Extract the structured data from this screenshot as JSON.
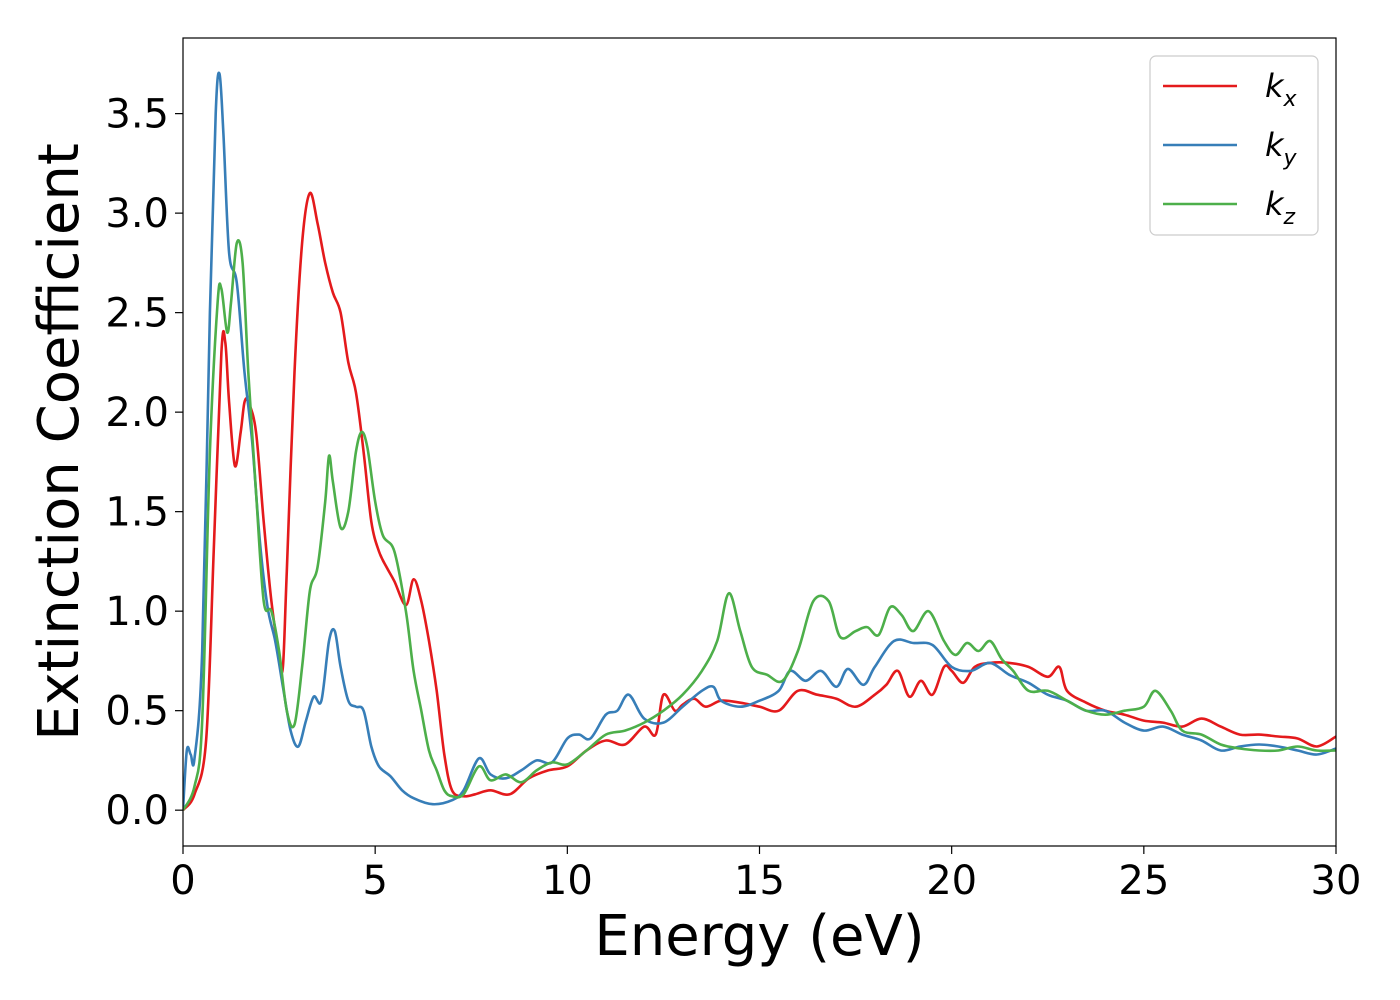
{
  "chart_data": {
    "type": "line",
    "title": "",
    "xlabel": "Energy (eV)",
    "ylabel": "Extinction Coefficient",
    "xlim": [
      0,
      30
    ],
    "ylim": [
      -0.18,
      3.88
    ],
    "xticks": [
      0,
      5,
      10,
      15,
      20,
      25,
      30
    ],
    "xtick_labels": [
      "0",
      "5",
      "10",
      "15",
      "20",
      "25",
      "30"
    ],
    "yticks": [
      0.0,
      0.5,
      1.0,
      1.5,
      2.0,
      2.5,
      3.0,
      3.5
    ],
    "ytick_labels": [
      "0.0",
      "0.5",
      "1.0",
      "1.5",
      "2.0",
      "2.5",
      "3.0",
      "3.5"
    ],
    "grid": false,
    "legend_position": "top-right",
    "series": [
      {
        "name": "k",
        "subscript": "x",
        "color": "#e41a1c",
        "points": [
          [
            0,
            0.0
          ],
          [
            0.3,
            0.08
          ],
          [
            0.6,
            0.35
          ],
          [
            0.8,
            1.3
          ],
          [
            1.0,
            2.3
          ],
          [
            1.1,
            2.35
          ],
          [
            1.2,
            2.05
          ],
          [
            1.35,
            1.73
          ],
          [
            1.5,
            1.9
          ],
          [
            1.6,
            2.05
          ],
          [
            1.7,
            2.05
          ],
          [
            1.9,
            1.9
          ],
          [
            2.1,
            1.45
          ],
          [
            2.3,
            1.05
          ],
          [
            2.5,
            0.78
          ],
          [
            2.6,
            0.72
          ],
          [
            2.7,
            1.2
          ],
          [
            2.9,
            2.2
          ],
          [
            3.1,
            2.85
          ],
          [
            3.3,
            3.1
          ],
          [
            3.5,
            2.95
          ],
          [
            3.7,
            2.75
          ],
          [
            3.9,
            2.6
          ],
          [
            4.1,
            2.5
          ],
          [
            4.3,
            2.25
          ],
          [
            4.5,
            2.1
          ],
          [
            4.7,
            1.8
          ],
          [
            4.9,
            1.45
          ],
          [
            5.1,
            1.3
          ],
          [
            5.3,
            1.22
          ],
          [
            5.5,
            1.15
          ],
          [
            5.8,
            1.03
          ],
          [
            6.0,
            1.16
          ],
          [
            6.2,
            1.05
          ],
          [
            6.4,
            0.85
          ],
          [
            6.6,
            0.6
          ],
          [
            6.8,
            0.28
          ],
          [
            7.0,
            0.1
          ],
          [
            7.3,
            0.07
          ],
          [
            7.6,
            0.08
          ],
          [
            8.0,
            0.1
          ],
          [
            8.5,
            0.08
          ],
          [
            9.0,
            0.16
          ],
          [
            9.5,
            0.2
          ],
          [
            10.0,
            0.22
          ],
          [
            10.5,
            0.3
          ],
          [
            11.0,
            0.35
          ],
          [
            11.5,
            0.33
          ],
          [
            12.0,
            0.42
          ],
          [
            12.3,
            0.38
          ],
          [
            12.5,
            0.58
          ],
          [
            12.8,
            0.5
          ],
          [
            13.0,
            0.53
          ],
          [
            13.3,
            0.56
          ],
          [
            13.6,
            0.52
          ],
          [
            14.0,
            0.55
          ],
          [
            14.5,
            0.54
          ],
          [
            15.0,
            0.52
          ],
          [
            15.5,
            0.5
          ],
          [
            16.0,
            0.6
          ],
          [
            16.5,
            0.58
          ],
          [
            17.0,
            0.56
          ],
          [
            17.5,
            0.52
          ],
          [
            18.0,
            0.58
          ],
          [
            18.3,
            0.63
          ],
          [
            18.6,
            0.7
          ],
          [
            18.9,
            0.57
          ],
          [
            19.2,
            0.65
          ],
          [
            19.5,
            0.58
          ],
          [
            19.8,
            0.72
          ],
          [
            20.0,
            0.7
          ],
          [
            20.3,
            0.64
          ],
          [
            20.6,
            0.72
          ],
          [
            21.0,
            0.74
          ],
          [
            21.5,
            0.74
          ],
          [
            22.0,
            0.72
          ],
          [
            22.5,
            0.67
          ],
          [
            22.8,
            0.72
          ],
          [
            23.0,
            0.6
          ],
          [
            23.5,
            0.54
          ],
          [
            24.0,
            0.5
          ],
          [
            24.5,
            0.48
          ],
          [
            25.0,
            0.45
          ],
          [
            25.5,
            0.44
          ],
          [
            26.0,
            0.42
          ],
          [
            26.5,
            0.46
          ],
          [
            27.0,
            0.42
          ],
          [
            27.5,
            0.38
          ],
          [
            28.0,
            0.38
          ],
          [
            28.5,
            0.37
          ],
          [
            29.0,
            0.36
          ],
          [
            29.5,
            0.32
          ],
          [
            30.0,
            0.37
          ]
        ]
      },
      {
        "name": "k",
        "subscript": "y",
        "color": "#377eb8",
        "points": [
          [
            0,
            0.0
          ],
          [
            0.1,
            0.3
          ],
          [
            0.2,
            0.28
          ],
          [
            0.3,
            0.26
          ],
          [
            0.5,
            0.8
          ],
          [
            0.7,
            2.5
          ],
          [
            0.85,
            3.5
          ],
          [
            0.95,
            3.7
          ],
          [
            1.05,
            3.4
          ],
          [
            1.2,
            2.8
          ],
          [
            1.4,
            2.65
          ],
          [
            1.6,
            2.2
          ],
          [
            1.8,
            1.85
          ],
          [
            2.0,
            1.35
          ],
          [
            2.2,
            1.02
          ],
          [
            2.4,
            0.85
          ],
          [
            2.6,
            0.62
          ],
          [
            2.8,
            0.4
          ],
          [
            3.0,
            0.32
          ],
          [
            3.2,
            0.45
          ],
          [
            3.4,
            0.57
          ],
          [
            3.6,
            0.55
          ],
          [
            3.8,
            0.85
          ],
          [
            3.95,
            0.9
          ],
          [
            4.1,
            0.72
          ],
          [
            4.3,
            0.55
          ],
          [
            4.5,
            0.52
          ],
          [
            4.7,
            0.5
          ],
          [
            4.9,
            0.32
          ],
          [
            5.1,
            0.22
          ],
          [
            5.4,
            0.17
          ],
          [
            5.7,
            0.1
          ],
          [
            6.0,
            0.06
          ],
          [
            6.5,
            0.03
          ],
          [
            7.0,
            0.05
          ],
          [
            7.3,
            0.1
          ],
          [
            7.7,
            0.26
          ],
          [
            8.0,
            0.18
          ],
          [
            8.4,
            0.16
          ],
          [
            8.8,
            0.2
          ],
          [
            9.2,
            0.25
          ],
          [
            9.6,
            0.24
          ],
          [
            10.0,
            0.36
          ],
          [
            10.3,
            0.38
          ],
          [
            10.6,
            0.36
          ],
          [
            11.0,
            0.48
          ],
          [
            11.3,
            0.5
          ],
          [
            11.6,
            0.58
          ],
          [
            12.0,
            0.46
          ],
          [
            12.5,
            0.44
          ],
          [
            13.0,
            0.52
          ],
          [
            13.5,
            0.6
          ],
          [
            13.8,
            0.62
          ],
          [
            14.0,
            0.55
          ],
          [
            14.5,
            0.52
          ],
          [
            15.0,
            0.55
          ],
          [
            15.5,
            0.6
          ],
          [
            15.8,
            0.7
          ],
          [
            16.2,
            0.65
          ],
          [
            16.6,
            0.7
          ],
          [
            17.0,
            0.62
          ],
          [
            17.3,
            0.71
          ],
          [
            17.7,
            0.63
          ],
          [
            18.0,
            0.72
          ],
          [
            18.5,
            0.85
          ],
          [
            19.0,
            0.84
          ],
          [
            19.5,
            0.83
          ],
          [
            20.0,
            0.72
          ],
          [
            20.5,
            0.7
          ],
          [
            21.0,
            0.74
          ],
          [
            21.5,
            0.68
          ],
          [
            22.0,
            0.64
          ],
          [
            22.5,
            0.58
          ],
          [
            23.0,
            0.55
          ],
          [
            23.5,
            0.5
          ],
          [
            24.0,
            0.5
          ],
          [
            24.5,
            0.44
          ],
          [
            25.0,
            0.4
          ],
          [
            25.5,
            0.42
          ],
          [
            26.0,
            0.38
          ],
          [
            26.5,
            0.35
          ],
          [
            27.0,
            0.3
          ],
          [
            27.5,
            0.32
          ],
          [
            28.0,
            0.33
          ],
          [
            28.5,
            0.32
          ],
          [
            29.0,
            0.3
          ],
          [
            29.5,
            0.28
          ],
          [
            30.0,
            0.31
          ]
        ]
      },
      {
        "name": "k",
        "subscript": "z",
        "color": "#4daf4a",
        "points": [
          [
            0,
            0.0
          ],
          [
            0.3,
            0.12
          ],
          [
            0.5,
            0.45
          ],
          [
            0.7,
            1.8
          ],
          [
            0.9,
            2.55
          ],
          [
            1.0,
            2.62
          ],
          [
            1.15,
            2.4
          ],
          [
            1.25,
            2.55
          ],
          [
            1.4,
            2.85
          ],
          [
            1.55,
            2.75
          ],
          [
            1.7,
            2.2
          ],
          [
            1.9,
            1.6
          ],
          [
            2.1,
            1.05
          ],
          [
            2.3,
            1.0
          ],
          [
            2.5,
            0.8
          ],
          [
            2.7,
            0.5
          ],
          [
            2.9,
            0.43
          ],
          [
            3.1,
            0.72
          ],
          [
            3.3,
            1.1
          ],
          [
            3.5,
            1.22
          ],
          [
            3.7,
            1.55
          ],
          [
            3.8,
            1.78
          ],
          [
            3.9,
            1.65
          ],
          [
            4.1,
            1.42
          ],
          [
            4.3,
            1.5
          ],
          [
            4.5,
            1.8
          ],
          [
            4.65,
            1.9
          ],
          [
            4.8,
            1.82
          ],
          [
            5.0,
            1.55
          ],
          [
            5.2,
            1.38
          ],
          [
            5.5,
            1.3
          ],
          [
            5.8,
            1.0
          ],
          [
            6.0,
            0.7
          ],
          [
            6.2,
            0.5
          ],
          [
            6.4,
            0.3
          ],
          [
            6.6,
            0.2
          ],
          [
            6.8,
            0.1
          ],
          [
            7.0,
            0.07
          ],
          [
            7.3,
            0.08
          ],
          [
            7.7,
            0.22
          ],
          [
            8.0,
            0.15
          ],
          [
            8.4,
            0.18
          ],
          [
            8.8,
            0.14
          ],
          [
            9.2,
            0.2
          ],
          [
            9.6,
            0.24
          ],
          [
            10.0,
            0.23
          ],
          [
            10.5,
            0.3
          ],
          [
            11.0,
            0.38
          ],
          [
            11.5,
            0.4
          ],
          [
            12.0,
            0.44
          ],
          [
            12.5,
            0.5
          ],
          [
            13.0,
            0.58
          ],
          [
            13.5,
            0.7
          ],
          [
            13.9,
            0.85
          ],
          [
            14.2,
            1.09
          ],
          [
            14.5,
            0.9
          ],
          [
            14.8,
            0.72
          ],
          [
            15.2,
            0.68
          ],
          [
            15.6,
            0.65
          ],
          [
            16.0,
            0.8
          ],
          [
            16.4,
            1.05
          ],
          [
            16.8,
            1.05
          ],
          [
            17.1,
            0.87
          ],
          [
            17.5,
            0.9
          ],
          [
            17.8,
            0.92
          ],
          [
            18.1,
            0.88
          ],
          [
            18.4,
            1.02
          ],
          [
            18.7,
            0.98
          ],
          [
            19.0,
            0.9
          ],
          [
            19.4,
            1.0
          ],
          [
            19.8,
            0.85
          ],
          [
            20.1,
            0.78
          ],
          [
            20.4,
            0.84
          ],
          [
            20.7,
            0.8
          ],
          [
            21.0,
            0.85
          ],
          [
            21.3,
            0.76
          ],
          [
            21.6,
            0.7
          ],
          [
            22.0,
            0.6
          ],
          [
            22.5,
            0.6
          ],
          [
            23.0,
            0.55
          ],
          [
            23.5,
            0.5
          ],
          [
            24.0,
            0.48
          ],
          [
            24.5,
            0.5
          ],
          [
            25.0,
            0.52
          ],
          [
            25.3,
            0.6
          ],
          [
            25.7,
            0.5
          ],
          [
            26.0,
            0.4
          ],
          [
            26.5,
            0.38
          ],
          [
            27.0,
            0.33
          ],
          [
            27.5,
            0.31
          ],
          [
            28.0,
            0.3
          ],
          [
            28.5,
            0.3
          ],
          [
            29.0,
            0.32
          ],
          [
            29.5,
            0.3
          ],
          [
            30.0,
            0.3
          ]
        ]
      }
    ]
  }
}
